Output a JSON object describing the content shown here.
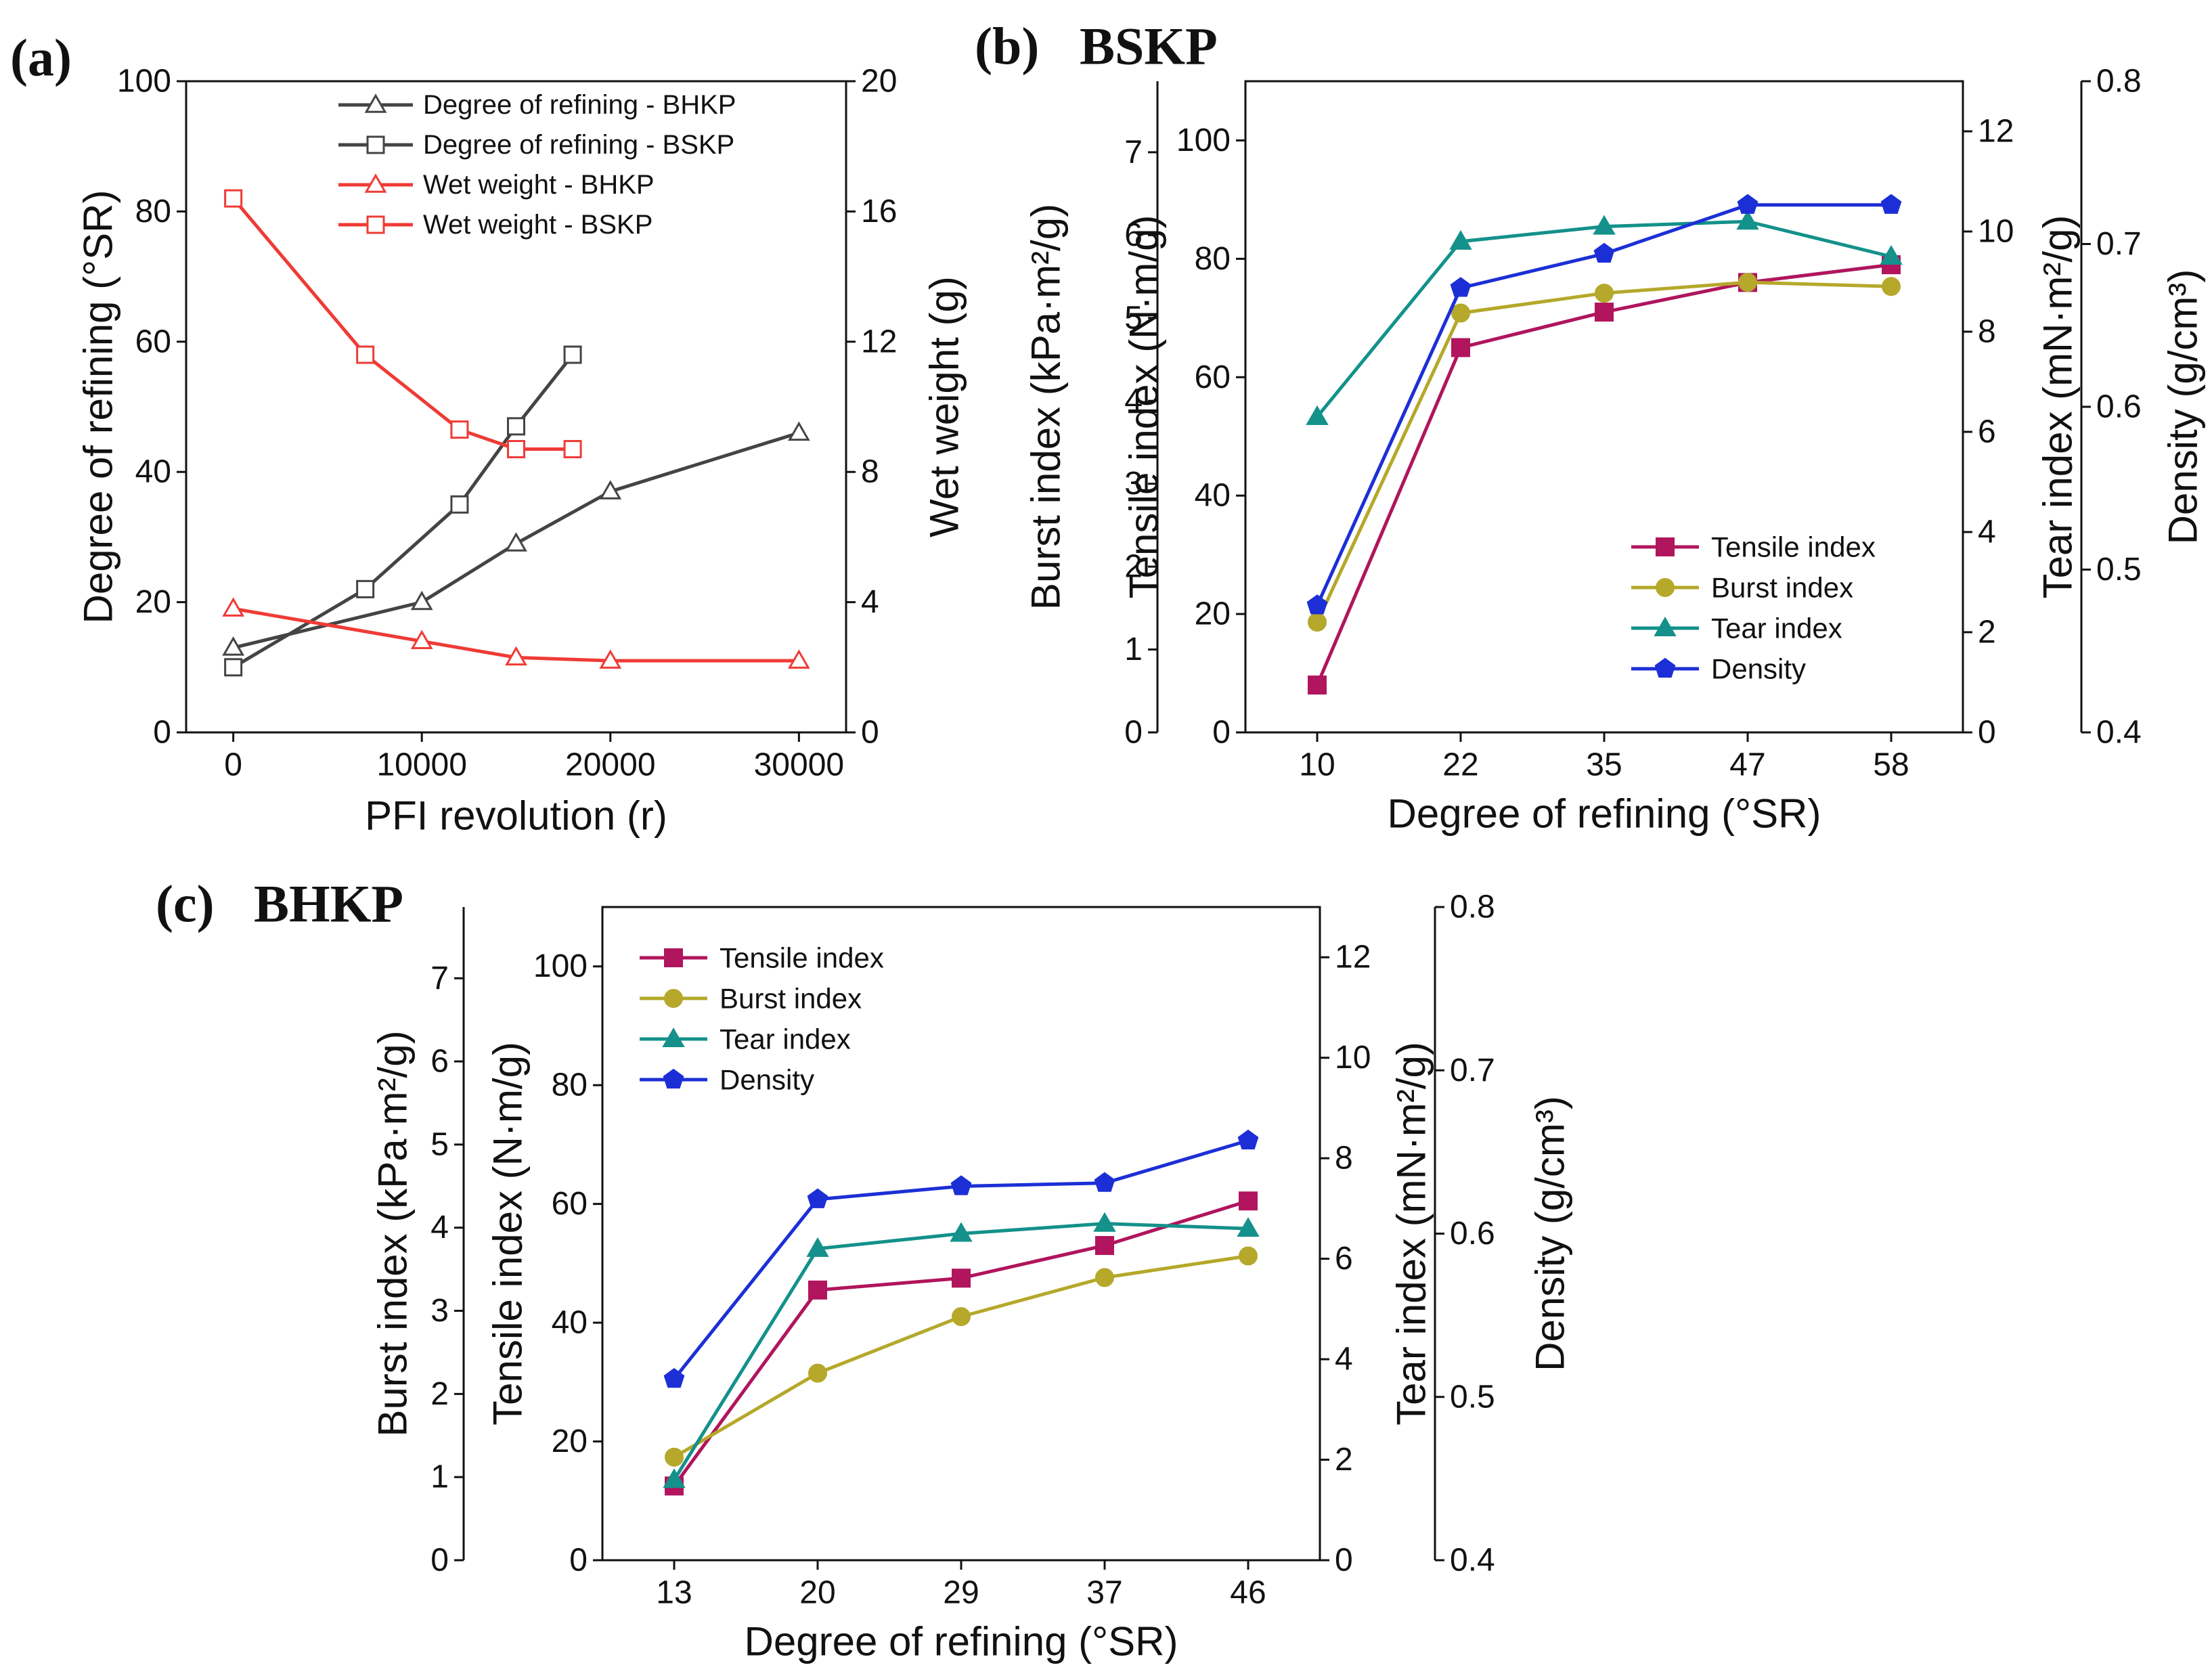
{
  "chart_data": [
    {
      "id": "a",
      "type": "line",
      "panel_label": "(a)",
      "title": "",
      "xlabel": "PFI revolution (r)",
      "ylabel_left": "Degree of refining (°SR)",
      "ylabel_right": "Wet weight (g)",
      "xlim": [
        -2500,
        32500
      ],
      "xticks": [
        "0",
        "10000",
        "20000",
        "30000"
      ],
      "xtick_values": [
        0,
        10000,
        20000,
        30000
      ],
      "ylim_left": [
        0,
        100
      ],
      "yticks_left": [
        "0",
        "20",
        "40",
        "60",
        "80",
        "100"
      ],
      "ylim_right": [
        0,
        20
      ],
      "yticks_right": [
        "0",
        "4",
        "8",
        "12",
        "16",
        "20"
      ],
      "legend_position": "top-center",
      "series": [
        {
          "name": "Degree of refining - BHKP",
          "axis": "left",
          "color": "#444444",
          "marker": "triangle-open",
          "x": [
            0,
            10000,
            15000,
            20000,
            30000
          ],
          "y": [
            13,
            20,
            29,
            37,
            46
          ]
        },
        {
          "name": "Degree of refining - BSKP",
          "axis": "left",
          "color": "#444444",
          "marker": "square-open",
          "x": [
            0,
            7000,
            12000,
            15000,
            18000
          ],
          "y": [
            10,
            22,
            35,
            47,
            58
          ]
        },
        {
          "name": "Wet weight - BHKP",
          "axis": "right",
          "color": "#ef3b36",
          "marker": "triangle-open",
          "x": [
            0,
            10000,
            15000,
            20000,
            30000
          ],
          "y": [
            3.8,
            2.8,
            2.3,
            2.2,
            2.2
          ]
        },
        {
          "name": "Wet weight - BSKP",
          "axis": "right",
          "color": "#ef3b36",
          "marker": "square-open",
          "x": [
            0,
            7000,
            12000,
            15000,
            18000
          ],
          "y": [
            16.4,
            11.6,
            9.3,
            8.7,
            8.7
          ]
        }
      ]
    },
    {
      "id": "b",
      "type": "line",
      "panel_label": "(b)",
      "title": "BSKP",
      "xlabel": "Degree of refining (°SR)",
      "categories": [
        "10",
        "22",
        "35",
        "47",
        "58"
      ],
      "axes": {
        "burst": {
          "label": "Burst index (kPa·m²/g)",
          "ylim": [
            0,
            7.857
          ],
          "ticks": [
            "0",
            "1",
            "2",
            "3",
            "4",
            "5",
            "6",
            "7"
          ],
          "tick_values": [
            0,
            1,
            2,
            3,
            4,
            5,
            6,
            7
          ]
        },
        "tensile": {
          "label": "Tensile index (N·m/g)",
          "ylim": [
            0,
            110
          ],
          "ticks": [
            "0",
            "20",
            "40",
            "60",
            "80",
            "100"
          ],
          "tick_values": [
            0,
            20,
            40,
            60,
            80,
            100
          ]
        },
        "tear": {
          "label": "Tear index (mN·m²/g)",
          "ylim": [
            0,
            13
          ],
          "ticks": [
            "0",
            "2",
            "4",
            "6",
            "8",
            "10",
            "12"
          ],
          "tick_values": [
            0,
            2,
            4,
            6,
            8,
            10,
            12
          ]
        },
        "density": {
          "label": "Density (g/cm³)",
          "ylim": [
            0.4,
            0.8
          ],
          "ticks": [
            "0.4",
            "0.5",
            "0.6",
            "0.7",
            "0.8"
          ],
          "tick_values": [
            0.4,
            0.5,
            0.6,
            0.7,
            0.8
          ]
        }
      },
      "legend_position": "bottom-right",
      "series": [
        {
          "name": "Tensile index",
          "axis": "tensile",
          "color": "#b0155d",
          "marker": "square",
          "values": [
            8,
            65,
            71,
            76,
            79
          ]
        },
        {
          "name": "Burst index",
          "axis": "burst",
          "color": "#b5a82a",
          "marker": "circle",
          "values": [
            1.33,
            5.06,
            5.3,
            5.43,
            5.38
          ]
        },
        {
          "name": "Tear index",
          "axis": "tear",
          "color": "#13918a",
          "marker": "triangle",
          "values": [
            6.3,
            9.8,
            10.1,
            10.2,
            9.5
          ]
        },
        {
          "name": "Density",
          "axis": "density",
          "color": "#1c2fd6",
          "marker": "pentagon",
          "values": [
            0.478,
            0.673,
            0.694,
            0.724,
            0.724
          ]
        }
      ]
    },
    {
      "id": "c",
      "type": "line",
      "panel_label": "(c)",
      "title": "BHKP",
      "xlabel": "Degree of refining (°SR)",
      "categories": [
        "13",
        "20",
        "29",
        "37",
        "46"
      ],
      "axes": {
        "burst": {
          "label": "Burst index (kPa·m²/g)",
          "ylim": [
            0,
            7.857
          ],
          "ticks": [
            "0",
            "1",
            "2",
            "3",
            "4",
            "5",
            "6",
            "7"
          ],
          "tick_values": [
            0,
            1,
            2,
            3,
            4,
            5,
            6,
            7
          ]
        },
        "tensile": {
          "label": "Tensile index (N·m/g)",
          "ylim": [
            0,
            110
          ],
          "ticks": [
            "0",
            "20",
            "40",
            "60",
            "80",
            "100"
          ],
          "tick_values": [
            0,
            20,
            40,
            60,
            80,
            100
          ]
        },
        "tear": {
          "label": "Tear index (mN·m²/g)",
          "ylim": [
            0,
            13
          ],
          "ticks": [
            "0",
            "2",
            "4",
            "6",
            "8",
            "10",
            "12"
          ],
          "tick_values": [
            0,
            2,
            4,
            6,
            8,
            10,
            12
          ]
        },
        "density": {
          "label": "Density (g/cm³)",
          "ylim": [
            0.4,
            0.8
          ],
          "ticks": [
            "0.4",
            "0.5",
            "0.6",
            "0.7",
            "0.8"
          ],
          "tick_values": [
            0.4,
            0.5,
            0.6,
            0.7,
            0.8
          ]
        }
      },
      "legend_position": "top-left",
      "series": [
        {
          "name": "Tensile index",
          "axis": "tensile",
          "color": "#b0155d",
          "marker": "square",
          "values": [
            12.5,
            45.5,
            47.5,
            53,
            60.5
          ]
        },
        {
          "name": "Burst index",
          "axis": "burst",
          "color": "#b5a82a",
          "marker": "circle",
          "values": [
            1.24,
            2.25,
            2.93,
            3.4,
            3.66
          ]
        },
        {
          "name": "Tear index",
          "axis": "tear",
          "color": "#13918a",
          "marker": "triangle",
          "values": [
            1.6,
            6.2,
            6.5,
            6.7,
            6.6
          ]
        },
        {
          "name": "Density",
          "axis": "density",
          "color": "#1c2fd6",
          "marker": "pentagon",
          "values": [
            0.511,
            0.621,
            0.629,
            0.631,
            0.657
          ]
        }
      ]
    }
  ]
}
